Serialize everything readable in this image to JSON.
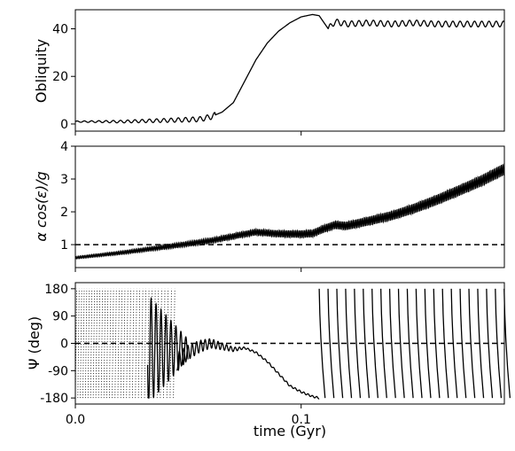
{
  "chart_data": [
    {
      "type": "line",
      "ylabel": "Obliquity",
      "xlim": [
        0.0,
        0.19
      ],
      "ylim": [
        -3,
        48
      ],
      "yticks": [
        0,
        20,
        40
      ],
      "series": [
        {
          "x": [
            0.0,
            0.02,
            0.04,
            0.055,
            0.06,
            0.065,
            0.07,
            0.075,
            0.08,
            0.085,
            0.09,
            0.095,
            0.1,
            0.105,
            0.108,
            0.112,
            0.115,
            0.12,
            0.13,
            0.14,
            0.15,
            0.16,
            0.17,
            0.18,
            0.19
          ],
          "y": [
            1,
            1,
            1.5,
            2,
            3,
            5,
            9,
            18,
            27,
            34,
            39,
            42.5,
            45,
            46,
            45.5,
            40,
            43,
            42,
            42.5,
            42,
            42.5,
            42,
            42,
            42,
            42
          ]
        }
      ]
    },
    {
      "type": "line",
      "ylabel": "α cos(ε)/g",
      "xlim": [
        0.0,
        0.19
      ],
      "ylim": [
        0.3,
        4.0
      ],
      "yticks": [
        1,
        2,
        3,
        4
      ],
      "ref_line": 1,
      "series": [
        {
          "x": [
            0.0,
            0.02,
            0.04,
            0.06,
            0.075,
            0.08,
            0.09,
            0.1,
            0.105,
            0.11,
            0.115,
            0.12,
            0.13,
            0.14,
            0.15,
            0.16,
            0.17,
            0.18,
            0.19
          ],
          "y": [
            0.6,
            0.75,
            0.93,
            1.12,
            1.32,
            1.38,
            1.33,
            1.32,
            1.34,
            1.48,
            1.6,
            1.57,
            1.72,
            1.88,
            2.1,
            2.36,
            2.65,
            2.95,
            3.3
          ]
        }
      ]
    },
    {
      "type": "line",
      "ylabel": "Ψ (deg)",
      "xlabel": "time (Gyr)",
      "xlim": [
        0.0,
        0.19
      ],
      "ylim": [
        -200,
        200
      ],
      "yticks": [
        -180,
        -90,
        0,
        90,
        180
      ],
      "xticks": [
        0.0,
        0.1
      ],
      "xticklabels": [
        "0.0",
        "0.1"
      ],
      "ref_line": 0,
      "series": [
        {
          "x": [
            0.045,
            0.05,
            0.055,
            0.06,
            0.065,
            0.07,
            0.075,
            0.08,
            0.085,
            0.09,
            0.095,
            0.1,
            0.105,
            0.108
          ],
          "y": [
            -60,
            -30,
            -10,
            0,
            -10,
            -20,
            -15,
            -30,
            -60,
            -100,
            -140,
            -160,
            -175,
            -180
          ]
        }
      ]
    }
  ]
}
